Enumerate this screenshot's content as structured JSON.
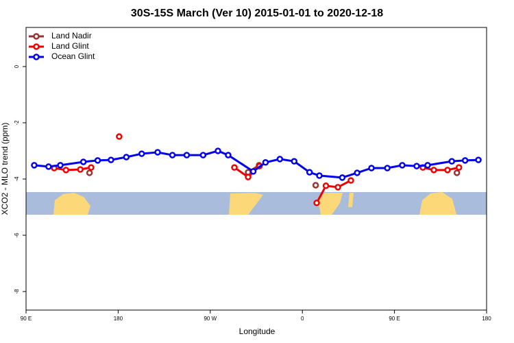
{
  "chart_data": {
    "type": "line",
    "title": "30S-15S March (Ver 10)   2015-01-01 to 2020-12-18",
    "x_label": "Longitude",
    "y_label": "XCO2 - MLO trend (ppm)",
    "xlim": [
      90,
      540
    ],
    "xticks": [
      {
        "value": 90,
        "label": "90 E"
      },
      180,
      {
        "value": 270,
        "label": "90 W"
      },
      {
        "value": 360,
        "label": "0"
      },
      {
        "value": 450,
        "label": "90 E"
      },
      {
        "value": 540,
        "label": "180"
      }
    ],
    "ylim": [
      -8.66,
      1.39
    ],
    "yticks": [
      0,
      -2,
      -4,
      -6,
      -8
    ],
    "legend": "top-left",
    "series": [
      {
        "name": "Land Nadir",
        "color": "#993333",
        "x": [
          152,
          null,
          307,
          317.7,
          null,
          373,
          null,
          511
        ],
        "values": [
          -3.78,
          null,
          -3.76,
          -3.51,
          null,
          -4.22,
          null,
          -3.78
        ]
      },
      {
        "name": "Land Glint",
        "color": "#ee0000",
        "x": [
          117.5,
          129,
          143,
          153.6,
          null,
          181,
          null,
          293.6,
          307,
          318,
          null,
          374,
          383,
          394.7,
          407.4,
          null,
          477.7,
          488.4,
          501.8,
          513
        ],
        "values": [
          -3.61,
          -3.68,
          -3.66,
          -3.59,
          null,
          -2.49,
          null,
          -3.59,
          -3.93,
          -3.54,
          null,
          -4.85,
          -4.24,
          -4.29,
          -4.05,
          null,
          -3.59,
          -3.68,
          -3.68,
          -3.59
        ]
      },
      {
        "name": "Ocean Glint",
        "color": "#0000ee",
        "x": [
          98,
          112,
          123.5,
          146,
          160,
          173,
          188,
          203,
          218.6,
          233,
          247,
          263,
          277.5,
          287.5,
          312,
          324,
          338,
          352,
          367,
          376.6,
          399,
          413.5,
          427.5,
          443,
          457.6,
          471.7,
          482.4,
          506,
          519,
          532
        ],
        "values": [
          -3.51,
          -3.56,
          -3.51,
          -3.39,
          -3.34,
          -3.32,
          -3.22,
          -3.1,
          -3.05,
          -3.15,
          -3.15,
          -3.15,
          -3.0,
          -3.15,
          -3.73,
          -3.41,
          -3.29,
          -3.37,
          -3.76,
          -3.88,
          -3.95,
          -3.78,
          -3.61,
          -3.61,
          -3.51,
          -3.54,
          -3.51,
          -3.37,
          -3.34,
          -3.32
        ]
      }
    ]
  }
}
